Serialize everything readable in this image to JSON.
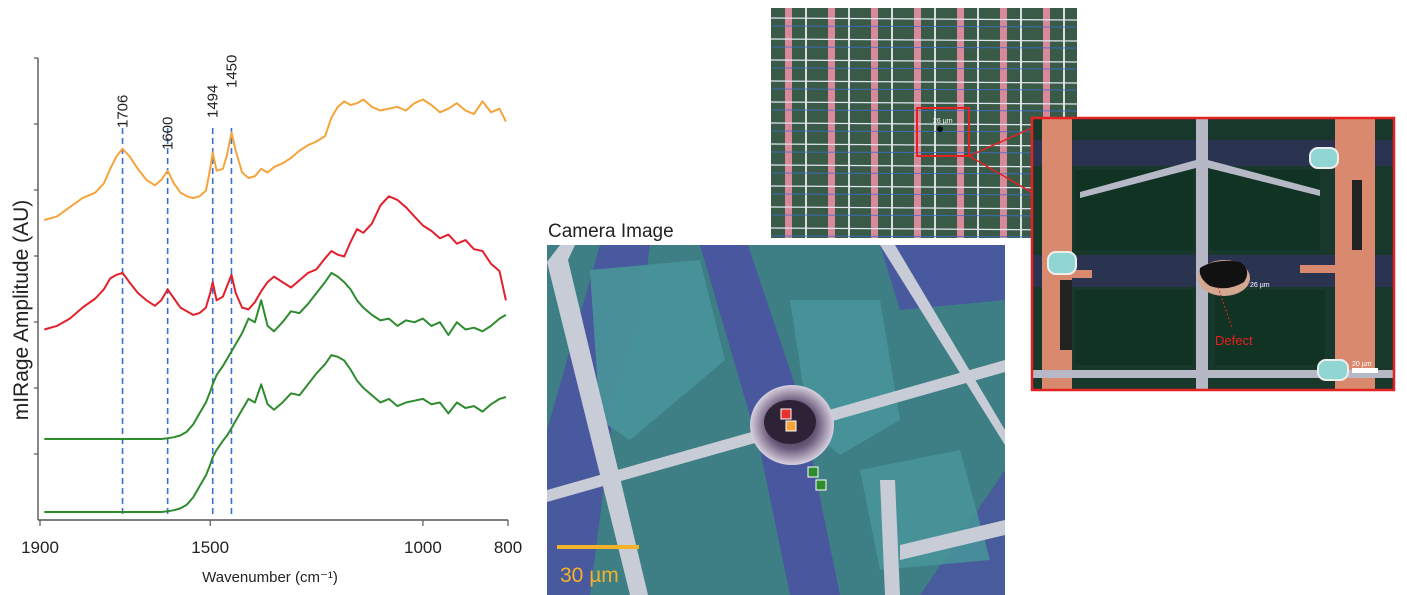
{
  "chart_data": {
    "type": "line",
    "xlabel": "Wavenumber (cm⁻¹)",
    "ylabel": "mIRage Amplitude (AU)",
    "xlim": [
      1900,
      800
    ],
    "x_reversed": true,
    "x_ticks": [
      "1900",
      "1500",
      "1000",
      "800"
    ],
    "x_tick_values": [
      1900,
      1500,
      1000,
      800
    ],
    "y_ticks_count": 7,
    "peaks": [
      {
        "label": "1706",
        "x": 1706
      },
      {
        "label": "1600",
        "x": 1600
      },
      {
        "label": "1494",
        "x": 1494
      },
      {
        "label": "1450",
        "x": 1450
      }
    ],
    "series": [
      {
        "color": "#f5a43c",
        "x": [
          1890,
          1860,
          1830,
          1800,
          1770,
          1750,
          1735,
          1720,
          1706,
          1690,
          1670,
          1650,
          1630,
          1615,
          1600,
          1585,
          1570,
          1555,
          1540,
          1525,
          1510,
          1500,
          1494,
          1485,
          1470,
          1460,
          1450,
          1440,
          1425,
          1410,
          1395,
          1380,
          1365,
          1350,
          1330,
          1310,
          1290,
          1270,
          1250,
          1230,
          1215,
          1200,
          1185,
          1170,
          1155,
          1140,
          1120,
          1100,
          1080,
          1060,
          1040,
          1020,
          1000,
          980,
          960,
          940,
          920,
          900,
          880,
          860,
          840,
          820,
          805
        ],
        "values": [
          8.0,
          8.1,
          8.35,
          8.6,
          8.75,
          9.0,
          9.4,
          9.75,
          9.95,
          9.75,
          9.4,
          9.1,
          8.95,
          9.1,
          9.35,
          9.0,
          8.75,
          8.65,
          8.6,
          8.65,
          8.8,
          9.4,
          9.85,
          9.35,
          9.4,
          9.8,
          10.4,
          9.9,
          9.3,
          9.15,
          9.2,
          9.4,
          9.3,
          9.45,
          9.55,
          9.7,
          9.9,
          10.05,
          10.15,
          10.3,
          10.8,
          11.1,
          11.25,
          11.15,
          11.2,
          11.3,
          11.1,
          11.0,
          11.05,
          11.1,
          11.0,
          11.2,
          11.3,
          11.15,
          10.95,
          11.05,
          11.2,
          11.0,
          10.9,
          11.25,
          10.95,
          11.05,
          10.7
        ]
      },
      {
        "color": "#e2202c",
        "x": [
          1890,
          1860,
          1830,
          1800,
          1770,
          1750,
          1735,
          1720,
          1706,
          1690,
          1670,
          1650,
          1630,
          1615,
          1600,
          1585,
          1570,
          1555,
          1540,
          1525,
          1510,
          1500,
          1494,
          1485,
          1470,
          1460,
          1450,
          1440,
          1425,
          1410,
          1395,
          1380,
          1365,
          1350,
          1330,
          1310,
          1290,
          1270,
          1250,
          1230,
          1215,
          1200,
          1185,
          1170,
          1155,
          1140,
          1120,
          1100,
          1080,
          1060,
          1040,
          1020,
          1000,
          980,
          960,
          940,
          920,
          900,
          880,
          860,
          840,
          820,
          805
        ],
        "values": [
          5.0,
          5.1,
          5.3,
          5.6,
          5.85,
          6.1,
          6.4,
          6.5,
          6.55,
          6.3,
          6.0,
          5.8,
          5.65,
          5.8,
          6.1,
          5.85,
          5.6,
          5.5,
          5.4,
          5.45,
          5.6,
          6.0,
          6.3,
          5.8,
          5.9,
          6.2,
          6.5,
          6.0,
          5.6,
          5.55,
          5.75,
          6.05,
          6.3,
          6.45,
          6.3,
          6.15,
          6.35,
          6.55,
          6.65,
          6.95,
          7.15,
          7.05,
          7.0,
          7.4,
          7.75,
          7.65,
          7.9,
          8.4,
          8.65,
          8.55,
          8.35,
          8.1,
          7.85,
          7.7,
          7.5,
          7.6,
          7.35,
          7.45,
          7.2,
          7.15,
          6.8,
          6.6,
          5.8
        ]
      },
      {
        "color": "#2e8b2e",
        "x": [
          1890,
          1860,
          1830,
          1800,
          1770,
          1750,
          1735,
          1720,
          1706,
          1690,
          1670,
          1650,
          1630,
          1615,
          1600,
          1585,
          1570,
          1555,
          1540,
          1525,
          1510,
          1500,
          1494,
          1485,
          1470,
          1460,
          1450,
          1440,
          1425,
          1410,
          1395,
          1380,
          1365,
          1350,
          1330,
          1310,
          1290,
          1270,
          1250,
          1230,
          1215,
          1200,
          1185,
          1170,
          1155,
          1140,
          1120,
          1100,
          1080,
          1060,
          1040,
          1020,
          1000,
          980,
          960,
          940,
          920,
          900,
          880,
          860,
          840,
          820,
          805
        ],
        "values": [
          2.0,
          2.0,
          2.0,
          2.0,
          2.0,
          2.0,
          2.0,
          2.0,
          2.0,
          2.0,
          2.0,
          2.0,
          2.0,
          2.0,
          2.02,
          2.05,
          2.1,
          2.2,
          2.4,
          2.7,
          3.0,
          3.3,
          3.5,
          3.75,
          4.0,
          4.2,
          4.4,
          4.6,
          4.9,
          5.3,
          5.2,
          5.8,
          5.1,
          4.95,
          5.2,
          5.5,
          5.45,
          5.7,
          6.0,
          6.3,
          6.55,
          6.45,
          6.3,
          6.1,
          5.8,
          5.6,
          5.4,
          5.25,
          5.3,
          5.1,
          5.25,
          5.2,
          5.3,
          5.1,
          5.2,
          4.85,
          5.2,
          5.0,
          5.05,
          4.95,
          5.1,
          5.3,
          5.4
        ]
      },
      {
        "color": "#2e8b2e",
        "x": [
          1890,
          1860,
          1830,
          1800,
          1770,
          1750,
          1735,
          1720,
          1706,
          1690,
          1670,
          1650,
          1630,
          1615,
          1600,
          1585,
          1570,
          1555,
          1540,
          1525,
          1510,
          1500,
          1494,
          1485,
          1470,
          1460,
          1450,
          1440,
          1425,
          1410,
          1395,
          1380,
          1365,
          1350,
          1330,
          1310,
          1290,
          1270,
          1250,
          1230,
          1215,
          1200,
          1185,
          1170,
          1155,
          1140,
          1120,
          1100,
          1080,
          1060,
          1040,
          1020,
          1000,
          980,
          960,
          940,
          920,
          900,
          880,
          860,
          840,
          820,
          805
        ],
        "values": [
          0.0,
          0.0,
          0.0,
          0.0,
          0.0,
          0.0,
          0.0,
          0.0,
          0.0,
          0.0,
          0.0,
          0.0,
          0.0,
          0.0,
          0.02,
          0.05,
          0.1,
          0.2,
          0.4,
          0.7,
          1.0,
          1.3,
          1.5,
          1.7,
          1.95,
          2.1,
          2.3,
          2.5,
          2.8,
          3.1,
          3.0,
          3.5,
          2.95,
          2.8,
          3.0,
          3.25,
          3.2,
          3.5,
          3.8,
          4.05,
          4.3,
          4.25,
          4.15,
          3.9,
          3.6,
          3.4,
          3.2,
          3.0,
          3.1,
          2.9,
          3.0,
          3.05,
          3.1,
          2.95,
          3.0,
          2.7,
          3.0,
          2.85,
          2.9,
          2.75,
          2.95,
          3.1,
          3.15
        ]
      }
    ]
  },
  "camera": {
    "title": "Camera Image",
    "scale_bar": "30 µm"
  },
  "overview": {
    "micrometer_label": "26 µm"
  },
  "zoom": {
    "micrometer_label": "26 µm",
    "defect_label": "Defect",
    "scale_label": "20 µm"
  }
}
